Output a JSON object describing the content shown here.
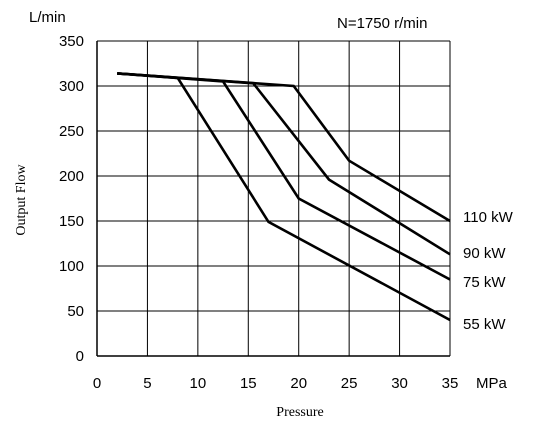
{
  "chart_data": {
    "type": "line",
    "title": "",
    "annotation": "N=1750 r/min",
    "xlabel": "Pressure",
    "ylabel": "Output Flow",
    "x_unit": "MPa",
    "y_unit": "L/min",
    "xlim": [
      0,
      35
    ],
    "ylim": [
      0,
      350
    ],
    "xticks": [
      0,
      5,
      10,
      15,
      20,
      25,
      30,
      35
    ],
    "yticks": [
      0,
      50,
      100,
      150,
      200,
      250,
      300,
      350
    ],
    "grid": true,
    "series": [
      {
        "name": "55 kW",
        "x": [
          2,
          8,
          17,
          35
        ],
        "y": [
          314,
          309,
          149,
          40
        ]
      },
      {
        "name": "75 kW",
        "x": [
          2,
          12.5,
          20,
          35
        ],
        "y": [
          314,
          305,
          175,
          85
        ]
      },
      {
        "name": "90 kW",
        "x": [
          2,
          15.5,
          23,
          35
        ],
        "y": [
          314,
          303,
          196,
          113
        ]
      },
      {
        "name": "110 kW",
        "x": [
          2,
          19.5,
          25,
          35
        ],
        "y": [
          314,
          300,
          217,
          150
        ]
      }
    ]
  }
}
